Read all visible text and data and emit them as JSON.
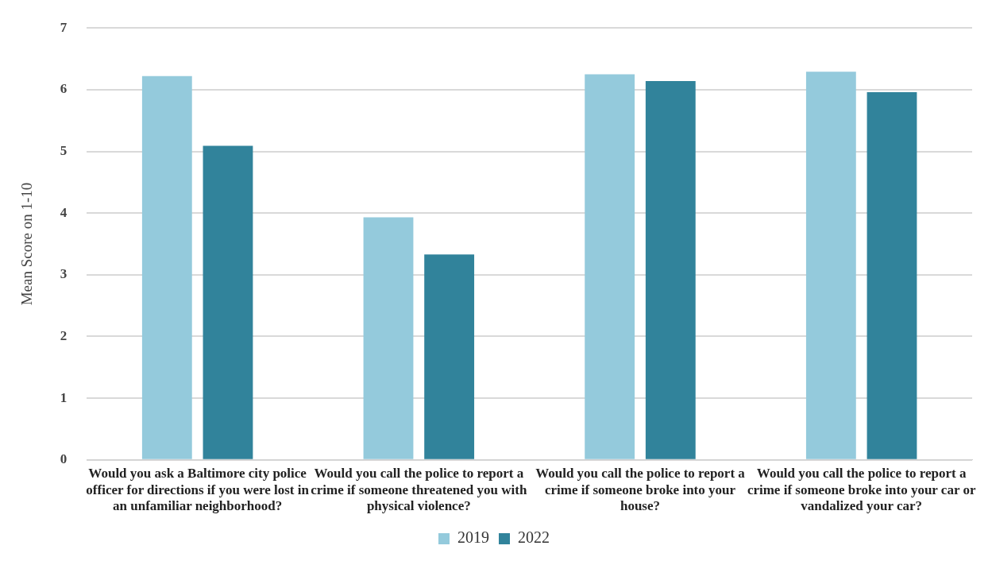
{
  "chart_data": {
    "type": "bar",
    "ylabel": "Mean Score on 1-10",
    "categories": [
      "Would you ask a Baltimore city police officer for directions if you were lost in an unfamiliar neighborhood?",
      "Would you call the police to report a crime if someone threatened you with physical violence?",
      "Would you call the police to report a crime if someone broke into your house?",
      "Would you call the police to report a crime if someone broke into your car or vandalized your car?"
    ],
    "series": [
      {
        "name": "2019",
        "color": "#94cadc",
        "values": [
          6.22,
          3.93,
          6.25,
          6.29
        ]
      },
      {
        "name": "2022",
        "color": "#31839b",
        "values": [
          5.09,
          3.33,
          6.14,
          5.96
        ]
      }
    ],
    "ylim": [
      0,
      7
    ],
    "yticks": [
      0,
      1,
      2,
      3,
      4,
      5,
      6,
      7
    ],
    "grid": "y",
    "legend": "bottom"
  }
}
